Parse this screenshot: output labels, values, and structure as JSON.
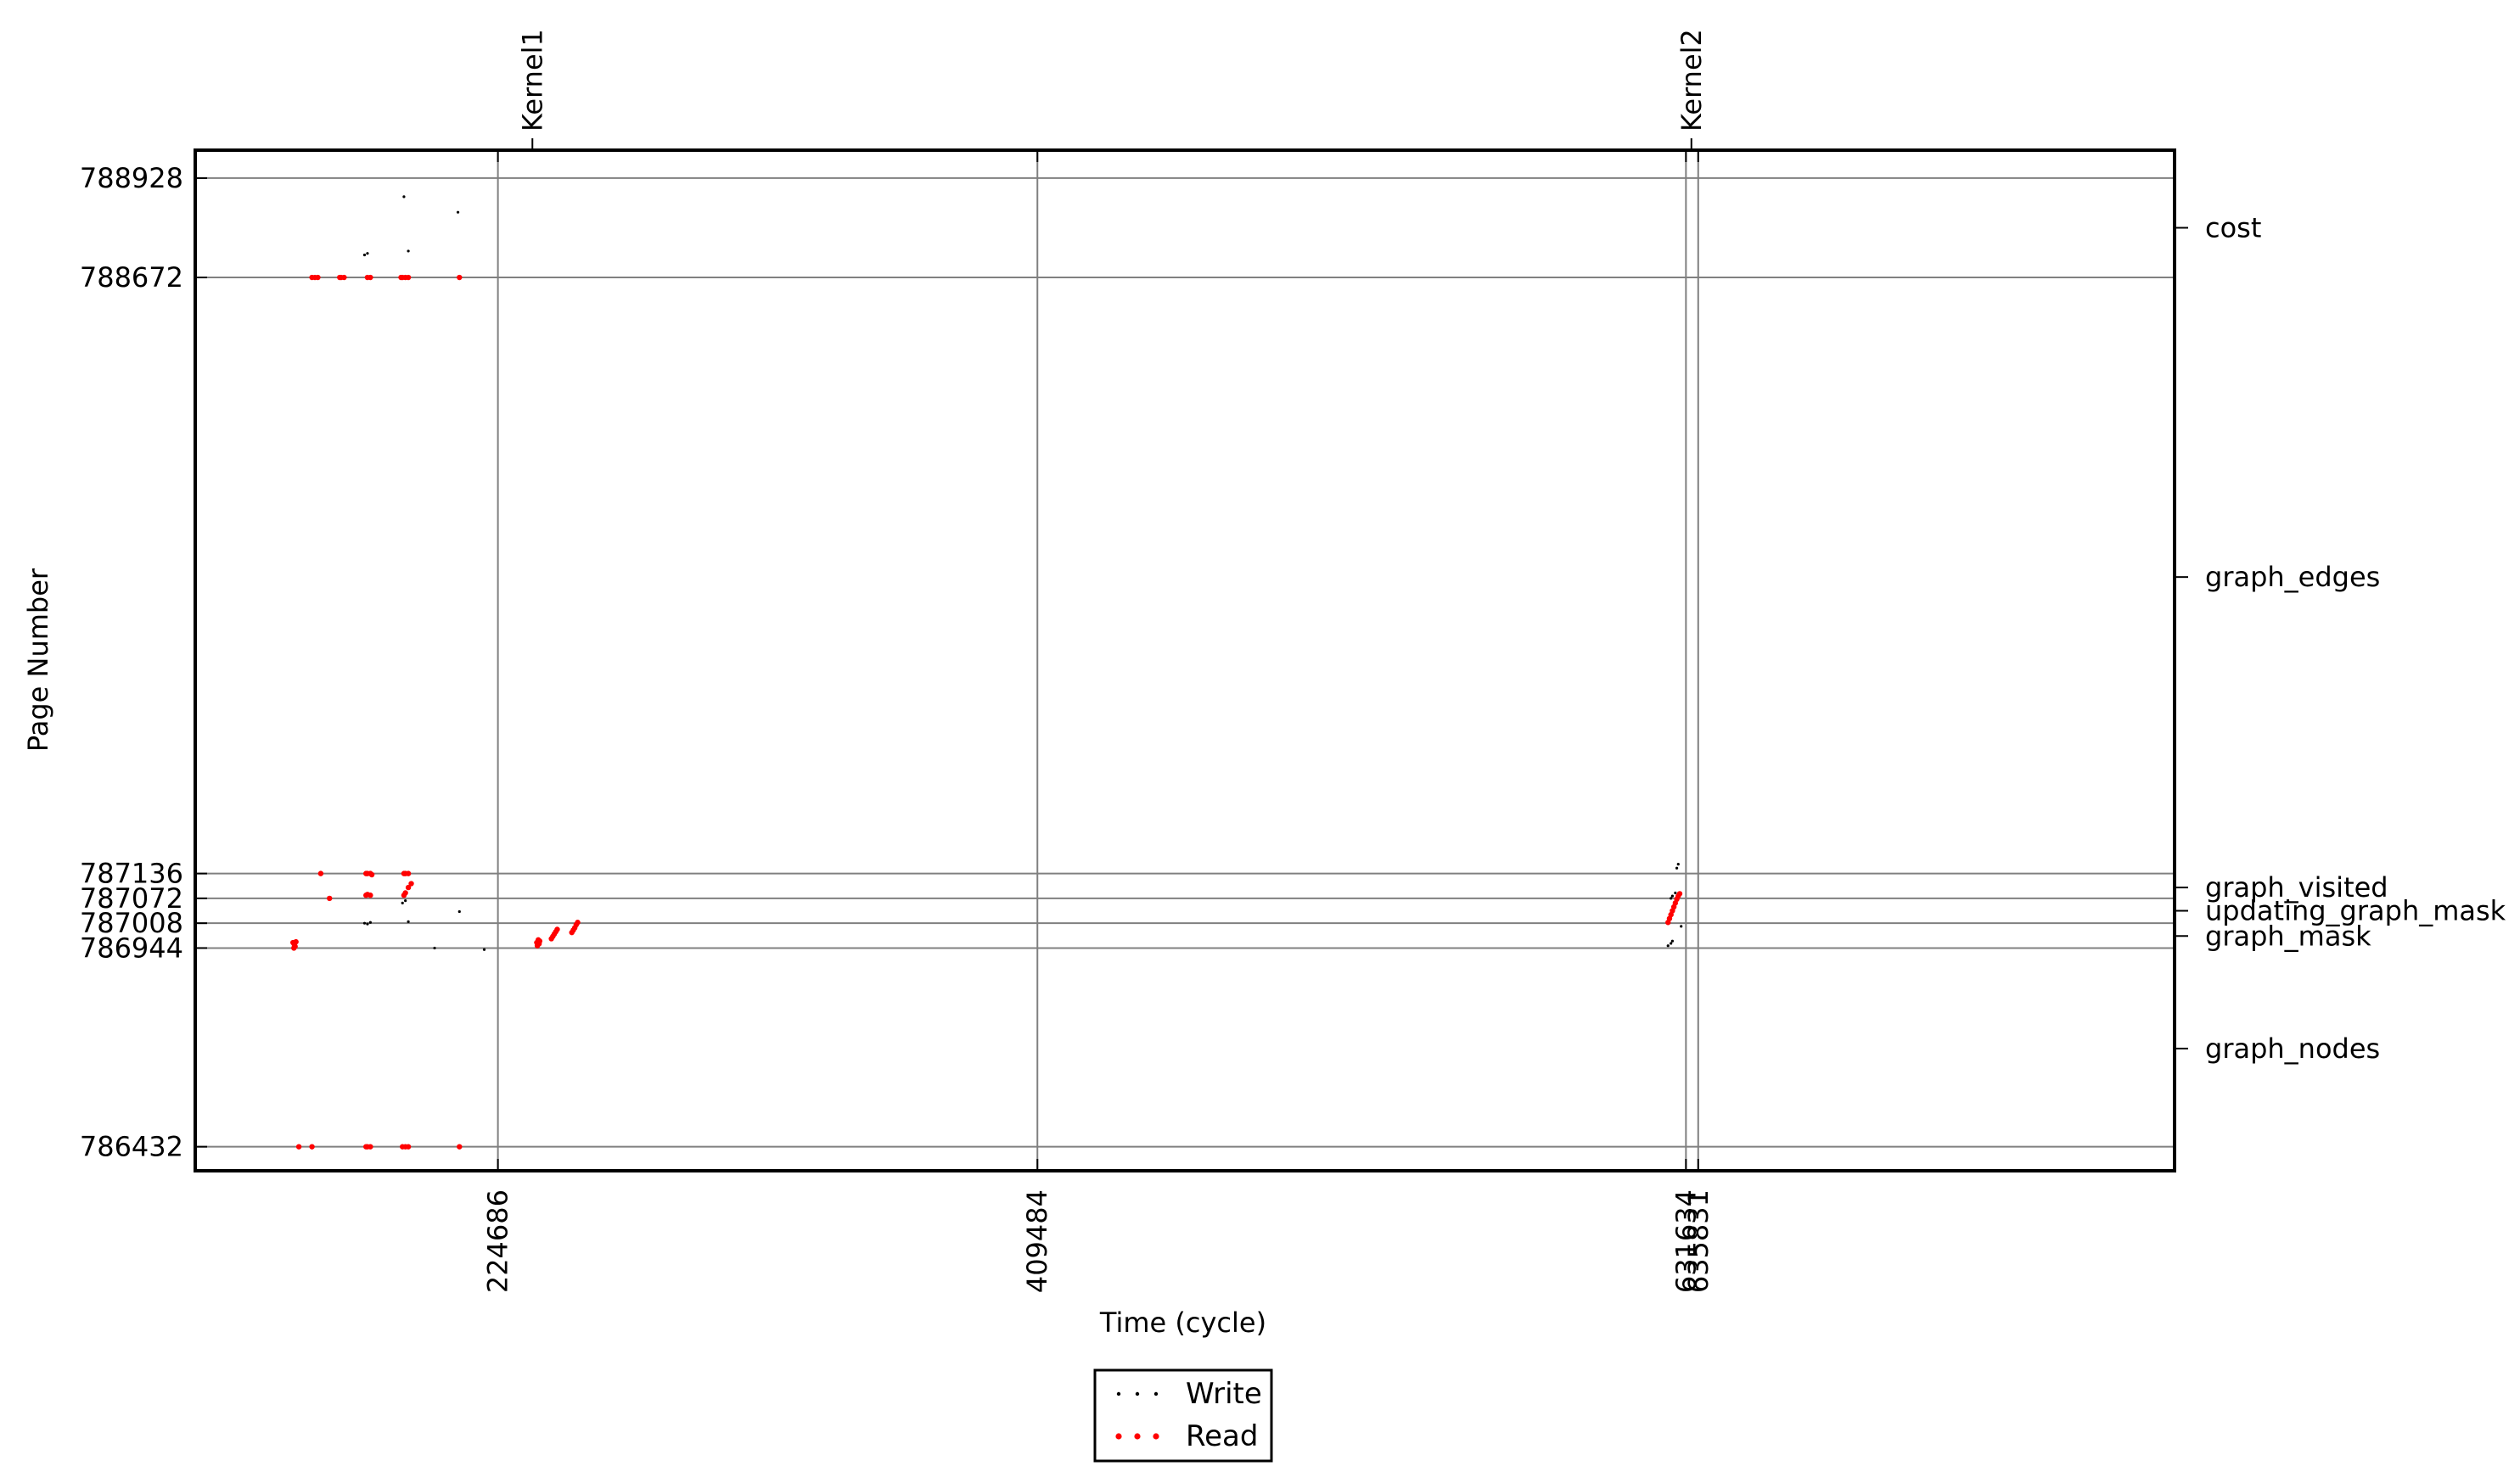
{
  "chart_data": {
    "type": "scatter",
    "title": "",
    "xlabel": "Time (cycle)",
    "ylabel": "Page Number",
    "xlim": [
      121000,
      799000
    ],
    "ylim": [
      786370,
      789000
    ],
    "grid": true,
    "legend": "bottom-center",
    "x_ticks": [
      {
        "value": 224686,
        "label": "224686"
      },
      {
        "value": 409484,
        "label": "409484"
      },
      {
        "value": 631634,
        "label": "631634"
      },
      {
        "value": 635831,
        "label": "635831"
      }
    ],
    "y_ticks": [
      {
        "value": 786432,
        "label": "786432"
      },
      {
        "value": 786944,
        "label": "786944"
      },
      {
        "value": 787008,
        "label": "787008"
      },
      {
        "value": 787072,
        "label": "787072"
      },
      {
        "value": 787136,
        "label": "787136"
      },
      {
        "value": 788672,
        "label": "788672"
      },
      {
        "value": 788928,
        "label": "788928"
      }
    ],
    "top_ticks": [
      {
        "value": 236500,
        "label": "Kernel1"
      },
      {
        "value": 633500,
        "label": "Kernel2"
      }
    ],
    "right_ticks": [
      {
        "value": 788800,
        "label": "cost"
      },
      {
        "value": 787900,
        "label": "graph_edges"
      },
      {
        "value": 787100,
        "label": "graph_visited"
      },
      {
        "value": 787040,
        "label": "updating_graph_mask"
      },
      {
        "value": 786975,
        "label": "graph_mask"
      },
      {
        "value": 786685,
        "label": "graph_nodes"
      }
    ],
    "series": [
      {
        "name": "Write",
        "color": "#000000",
        "points": [
          [
            192500,
            788880
          ],
          [
            179000,
            788730
          ],
          [
            180000,
            788734
          ],
          [
            194000,
            788740
          ],
          [
            211000,
            788840
          ],
          [
            179000,
            787008
          ],
          [
            181000,
            787010
          ],
          [
            180000,
            787006
          ],
          [
            192000,
            787060
          ],
          [
            193000,
            787066
          ],
          [
            194000,
            787012
          ],
          [
            211500,
            787038
          ],
          [
            203000,
            786944
          ],
          [
            220000,
            786940
          ],
          [
            625500,
            786950
          ],
          [
            626500,
            786956
          ],
          [
            627000,
            786962
          ],
          [
            626500,
            787072
          ],
          [
            627000,
            787078
          ],
          [
            628500,
            787150
          ],
          [
            629000,
            787160
          ],
          [
            630000,
            787000
          ],
          [
            628000,
            787086
          ]
        ]
      },
      {
        "name": "Read",
        "color": "#ff0000",
        "points": [
          [
            161000,
            788672
          ],
          [
            162000,
            788672
          ],
          [
            163000,
            788672
          ],
          [
            170500,
            788672
          ],
          [
            171000,
            788672
          ],
          [
            172000,
            788672
          ],
          [
            180000,
            788672
          ],
          [
            181000,
            788672
          ],
          [
            191500,
            788672
          ],
          [
            192000,
            788672
          ],
          [
            193000,
            788672
          ],
          [
            194000,
            788672
          ],
          [
            211500,
            788672
          ],
          [
            164000,
            787136
          ],
          [
            179500,
            787136
          ],
          [
            180000,
            787136
          ],
          [
            181000,
            787136
          ],
          [
            181500,
            787133
          ],
          [
            192500,
            787136
          ],
          [
            193000,
            787136
          ],
          [
            194000,
            787136
          ],
          [
            167000,
            787072
          ],
          [
            179500,
            787080
          ],
          [
            180000,
            787082
          ],
          [
            181000,
            787080
          ],
          [
            192500,
            787080
          ],
          [
            193000,
            787086
          ],
          [
            194000,
            787100
          ],
          [
            195000,
            787110
          ],
          [
            154500,
            786958
          ],
          [
            155000,
            786952
          ],
          [
            154800,
            786944
          ],
          [
            155200,
            786948
          ],
          [
            155500,
            786960
          ],
          [
            156500,
            786432
          ],
          [
            161000,
            786432
          ],
          [
            179500,
            786432
          ],
          [
            180000,
            786432
          ],
          [
            181000,
            786432
          ],
          [
            192000,
            786432
          ],
          [
            193000,
            786432
          ],
          [
            194000,
            786432
          ],
          [
            211500,
            786432
          ],
          [
            238000,
            786958
          ],
          [
            238200,
            786950
          ],
          [
            238500,
            786965
          ],
          [
            238800,
            786955
          ],
          [
            239000,
            786962
          ],
          [
            243000,
            786968
          ],
          [
            243500,
            786974
          ],
          [
            244000,
            786980
          ],
          [
            244500,
            786986
          ],
          [
            245000,
            786992
          ],
          [
            250000,
            786984
          ],
          [
            250500,
            786990
          ],
          [
            251000,
            786996
          ],
          [
            251500,
            787004
          ],
          [
            252000,
            787010
          ],
          [
            625500,
            787010
          ],
          [
            626000,
            787020
          ],
          [
            626500,
            787030
          ],
          [
            627000,
            787040
          ],
          [
            627500,
            787050
          ],
          [
            628000,
            787060
          ],
          [
            628500,
            787070
          ],
          [
            629000,
            787078
          ],
          [
            629500,
            787084
          ]
        ]
      }
    ]
  }
}
